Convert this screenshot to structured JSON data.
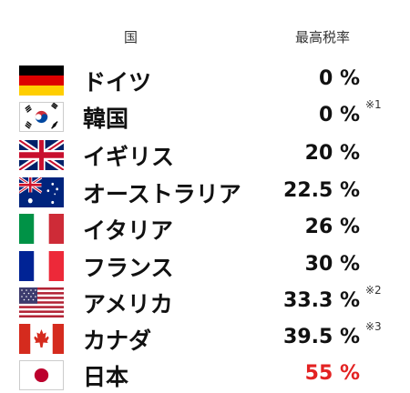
{
  "header": {
    "country_label": "国",
    "rate_label": "最高税率"
  },
  "rows": [
    {
      "flag": "germany-flag",
      "name": "ドイツ",
      "rate": "0 %",
      "note": ""
    },
    {
      "flag": "south-korea-flag",
      "name": "韓国",
      "rate": "0 %",
      "note": "※1"
    },
    {
      "flag": "uk-flag",
      "name": "イギリス",
      "rate": "20 %",
      "note": ""
    },
    {
      "flag": "australia-flag",
      "name": "オーストラリア",
      "rate": "22.5 %",
      "note": ""
    },
    {
      "flag": "italy-flag",
      "name": "イタリア",
      "rate": "26 %",
      "note": ""
    },
    {
      "flag": "france-flag",
      "name": "フランス",
      "rate": "30 %",
      "note": ""
    },
    {
      "flag": "usa-flag",
      "name": "アメリカ",
      "rate": "33.3 %",
      "note": "※2"
    },
    {
      "flag": "canada-flag",
      "name": "カナダ",
      "rate": "39.5 %",
      "note": "※3"
    },
    {
      "flag": "japan-flag",
      "name": "日本",
      "rate": "55 %",
      "note": ""
    }
  ],
  "colors": {
    "highlight": "#e32222",
    "text": "#111111"
  }
}
